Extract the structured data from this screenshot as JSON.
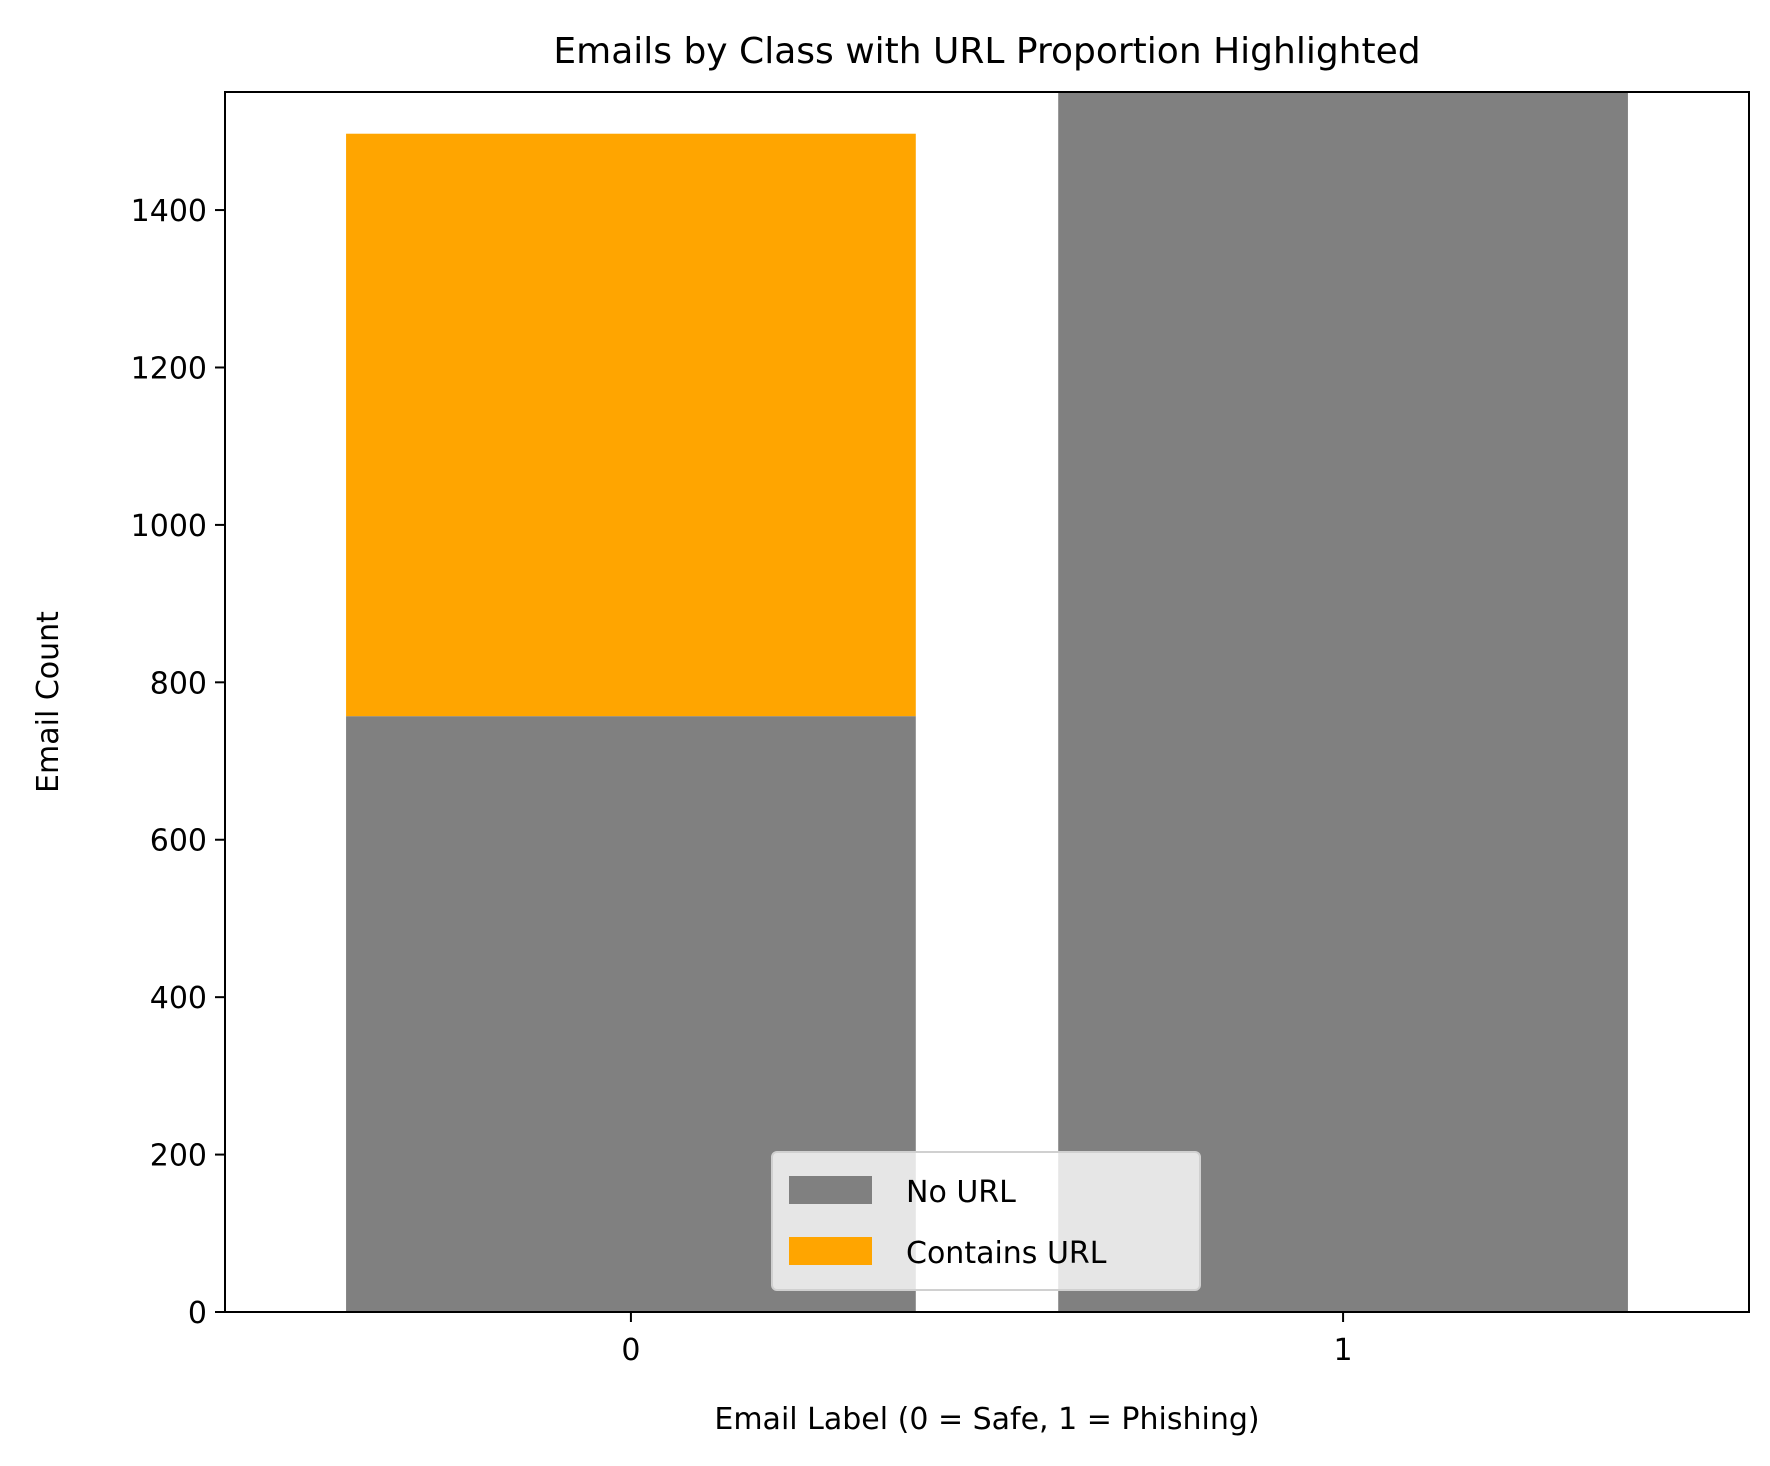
{
  "chart_data": {
    "type": "bar",
    "stacked": true,
    "title": "Emails by Class with URL Proportion Highlighted",
    "xlabel": "Email Label (0 = Safe, 1 = Phishing)",
    "ylabel": "Email Count",
    "categories": [
      "0",
      "1"
    ],
    "ylim": [
      0,
      1550
    ],
    "yticks": [
      0,
      200,
      400,
      600,
      800,
      1000,
      1200,
      1400
    ],
    "grid": false,
    "legend_position": "lower-center",
    "series": [
      {
        "name": "No URL",
        "color": "#808080",
        "values": [
          757,
          1550
        ]
      },
      {
        "name": "Contains URL",
        "color": "#ffa500",
        "values": [
          740,
          0
        ]
      }
    ]
  }
}
